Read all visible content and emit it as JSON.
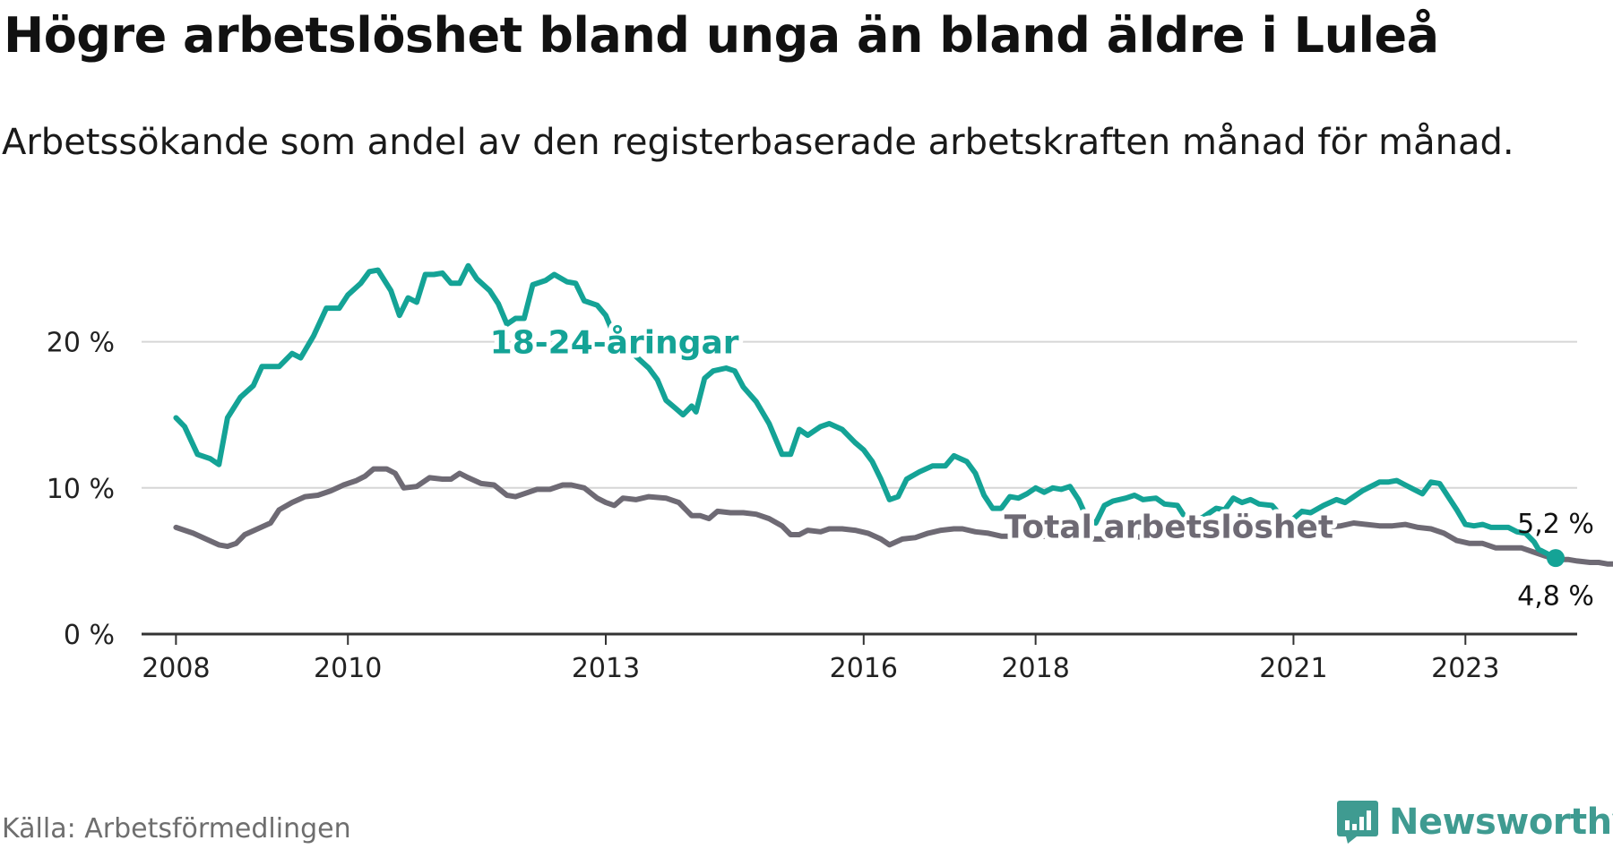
{
  "header": {
    "title": "Högre arbetslöshet bland unga än bland äldre i Luleå",
    "subtitle": "Arbetssökande som andel av den registerbaserade arbetskraften månad för månad."
  },
  "footer": {
    "source": "Källa: Arbetsförmedlingen",
    "brand": "Newsworthy"
  },
  "colors": {
    "young": "#14a396",
    "total": "#6e6a74",
    "grid": "#d6d6d6",
    "axis": "#333333",
    "brand": "#3f9b91"
  },
  "chart_data": {
    "type": "line",
    "title": "Högre arbetslöshet bland unga än bland äldre i Luleå",
    "xlabel": "",
    "ylabel": "",
    "xlim": [
      2007.6,
      2024.3
    ],
    "ylim": [
      0,
      25
    ],
    "y_ticks": [
      {
        "value": 0,
        "label": "0 %"
      },
      {
        "value": 10,
        "label": "10 %"
      },
      {
        "value": 20,
        "label": "20 %"
      }
    ],
    "x_ticks": [
      {
        "value": 2008,
        "label": "2008"
      },
      {
        "value": 2010,
        "label": "2010"
      },
      {
        "value": 2013,
        "label": "2013"
      },
      {
        "value": 2016,
        "label": "2016"
      },
      {
        "value": 2018,
        "label": "2018"
      },
      {
        "value": 2021,
        "label": "2021"
      },
      {
        "value": 2023,
        "label": "2023"
      }
    ],
    "grid": true,
    "series": [
      {
        "name": "18-24-åringar",
        "label": "18-24-åringar",
        "color": "#14a396",
        "label_anchor": {
          "x": 2013.1,
          "y": 19.2
        },
        "end_label": "5,2 %",
        "points": [
          [
            2008.0,
            14.8
          ],
          [
            2008.1,
            14.2
          ],
          [
            2008.25,
            12.3
          ],
          [
            2008.4,
            12.0
          ],
          [
            2008.5,
            11.6
          ],
          [
            2008.6,
            14.8
          ],
          [
            2008.75,
            16.2
          ],
          [
            2008.9,
            17.0
          ],
          [
            2009.0,
            18.3
          ],
          [
            2009.2,
            18.3
          ],
          [
            2009.35,
            19.2
          ],
          [
            2009.45,
            18.9
          ],
          [
            2009.6,
            20.4
          ],
          [
            2009.75,
            22.3
          ],
          [
            2009.9,
            22.3
          ],
          [
            2010.0,
            23.2
          ],
          [
            2010.15,
            24.0
          ],
          [
            2010.25,
            24.8
          ],
          [
            2010.35,
            24.9
          ],
          [
            2010.5,
            23.5
          ],
          [
            2010.6,
            21.8
          ],
          [
            2010.7,
            23.0
          ],
          [
            2010.8,
            22.7
          ],
          [
            2010.9,
            24.6
          ],
          [
            2011.0,
            24.6
          ],
          [
            2011.1,
            24.7
          ],
          [
            2011.2,
            24.0
          ],
          [
            2011.3,
            24.0
          ],
          [
            2011.4,
            25.2
          ],
          [
            2011.5,
            24.3
          ],
          [
            2011.65,
            23.5
          ],
          [
            2011.75,
            22.6
          ],
          [
            2011.85,
            21.2
          ],
          [
            2011.95,
            21.6
          ],
          [
            2012.05,
            21.6
          ],
          [
            2012.15,
            23.9
          ],
          [
            2012.3,
            24.2
          ],
          [
            2012.4,
            24.6
          ],
          [
            2012.55,
            24.1
          ],
          [
            2012.65,
            24.0
          ],
          [
            2012.75,
            22.8
          ],
          [
            2012.9,
            22.5
          ],
          [
            2013.0,
            21.8
          ],
          [
            2013.1,
            20.4
          ],
          [
            2013.2,
            19.8
          ],
          [
            2013.35,
            19.0
          ],
          [
            2013.5,
            18.2
          ],
          [
            2013.6,
            17.4
          ],
          [
            2013.7,
            16.0
          ],
          [
            2013.8,
            15.5
          ],
          [
            2013.9,
            15.0
          ],
          [
            2014.0,
            15.6
          ],
          [
            2014.05,
            15.2
          ],
          [
            2014.15,
            17.5
          ],
          [
            2014.25,
            18.0
          ],
          [
            2014.4,
            18.2
          ],
          [
            2014.5,
            18.0
          ],
          [
            2014.6,
            16.9
          ],
          [
            2014.75,
            15.9
          ],
          [
            2014.9,
            14.4
          ],
          [
            2015.05,
            12.3
          ],
          [
            2015.15,
            12.3
          ],
          [
            2015.25,
            14.0
          ],
          [
            2015.35,
            13.6
          ],
          [
            2015.5,
            14.2
          ],
          [
            2015.6,
            14.4
          ],
          [
            2015.75,
            14.0
          ],
          [
            2015.9,
            13.1
          ],
          [
            2016.0,
            12.6
          ],
          [
            2016.1,
            11.8
          ],
          [
            2016.2,
            10.6
          ],
          [
            2016.3,
            9.2
          ],
          [
            2016.4,
            9.4
          ],
          [
            2016.5,
            10.6
          ],
          [
            2016.65,
            11.1
          ],
          [
            2016.8,
            11.5
          ],
          [
            2016.95,
            11.5
          ],
          [
            2017.05,
            12.2
          ],
          [
            2017.2,
            11.8
          ],
          [
            2017.3,
            11.0
          ],
          [
            2017.4,
            9.5
          ],
          [
            2017.5,
            8.6
          ],
          [
            2017.6,
            8.6
          ],
          [
            2017.7,
            9.4
          ],
          [
            2017.8,
            9.3
          ],
          [
            2017.9,
            9.6
          ],
          [
            2018.0,
            10.0
          ],
          [
            2018.1,
            9.7
          ],
          [
            2018.2,
            10.0
          ],
          [
            2018.3,
            9.9
          ],
          [
            2018.4,
            10.1
          ],
          [
            2018.5,
            9.2
          ],
          [
            2018.6,
            7.9
          ],
          [
            2018.7,
            7.6
          ],
          [
            2018.8,
            8.8
          ],
          [
            2018.9,
            9.1
          ],
          [
            2019.05,
            9.3
          ],
          [
            2019.15,
            9.5
          ],
          [
            2019.25,
            9.2
          ],
          [
            2019.4,
            9.3
          ],
          [
            2019.5,
            8.9
          ],
          [
            2019.65,
            8.8
          ],
          [
            2019.75,
            7.9
          ],
          [
            2019.85,
            7.7
          ],
          [
            2019.95,
            8.0
          ],
          [
            2020.1,
            8.6
          ],
          [
            2020.2,
            8.5
          ],
          [
            2020.3,
            9.3
          ],
          [
            2020.4,
            9.0
          ],
          [
            2020.5,
            9.2
          ],
          [
            2020.6,
            8.9
          ],
          [
            2020.75,
            8.8
          ],
          [
            2020.9,
            7.8
          ],
          [
            2021.0,
            7.9
          ],
          [
            2021.1,
            8.4
          ],
          [
            2021.2,
            8.3
          ],
          [
            2021.35,
            8.8
          ],
          [
            2021.5,
            9.2
          ],
          [
            2021.6,
            9.0
          ],
          [
            2021.7,
            9.4
          ],
          [
            2021.8,
            9.8
          ],
          [
            2021.9,
            10.1
          ],
          [
            2022.0,
            10.4
          ],
          [
            2022.1,
            10.4
          ],
          [
            2022.2,
            10.5
          ],
          [
            2022.3,
            10.2
          ],
          [
            2022.4,
            9.9
          ],
          [
            2022.5,
            9.6
          ],
          [
            2022.6,
            10.4
          ],
          [
            2022.7,
            10.3
          ],
          [
            2022.8,
            9.4
          ],
          [
            2022.9,
            8.5
          ],
          [
            2023.0,
            7.5
          ],
          [
            2023.1,
            7.4
          ],
          [
            2023.2,
            7.5
          ],
          [
            2023.3,
            7.3
          ],
          [
            2023.4,
            7.3
          ],
          [
            2023.5,
            7.3
          ],
          [
            2023.6,
            7.0
          ],
          [
            2023.7,
            6.9
          ],
          [
            2023.8,
            6.3
          ],
          [
            2023.85,
            5.8
          ],
          [
            2023.95,
            5.5
          ],
          [
            2024.05,
            5.2
          ]
        ]
      },
      {
        "name": "Total arbetslöshet",
        "label": "Total arbetslöshet",
        "color": "#6e6a74",
        "label_anchor": {
          "x": 2019.55,
          "y": 6.6
        },
        "end_label": "4,8 %",
        "points": [
          [
            2008.0,
            7.3
          ],
          [
            2008.2,
            6.9
          ],
          [
            2008.35,
            6.5
          ],
          [
            2008.5,
            6.1
          ],
          [
            2008.6,
            6.0
          ],
          [
            2008.7,
            6.2
          ],
          [
            2008.8,
            6.8
          ],
          [
            2008.95,
            7.2
          ],
          [
            2009.1,
            7.6
          ],
          [
            2009.2,
            8.5
          ],
          [
            2009.35,
            9.0
          ],
          [
            2009.5,
            9.4
          ],
          [
            2009.65,
            9.5
          ],
          [
            2009.8,
            9.8
          ],
          [
            2009.95,
            10.2
          ],
          [
            2010.1,
            10.5
          ],
          [
            2010.2,
            10.8
          ],
          [
            2010.3,
            11.3
          ],
          [
            2010.45,
            11.3
          ],
          [
            2010.55,
            11.0
          ],
          [
            2010.65,
            10.0
          ],
          [
            2010.8,
            10.1
          ],
          [
            2010.95,
            10.7
          ],
          [
            2011.1,
            10.6
          ],
          [
            2011.2,
            10.6
          ],
          [
            2011.3,
            11.0
          ],
          [
            2011.4,
            10.7
          ],
          [
            2011.55,
            10.3
          ],
          [
            2011.7,
            10.2
          ],
          [
            2011.85,
            9.5
          ],
          [
            2011.95,
            9.4
          ],
          [
            2012.05,
            9.6
          ],
          [
            2012.2,
            9.9
          ],
          [
            2012.35,
            9.9
          ],
          [
            2012.5,
            10.2
          ],
          [
            2012.6,
            10.2
          ],
          [
            2012.75,
            10.0
          ],
          [
            2012.9,
            9.3
          ],
          [
            2013.0,
            9.0
          ],
          [
            2013.1,
            8.8
          ],
          [
            2013.2,
            9.3
          ],
          [
            2013.35,
            9.2
          ],
          [
            2013.5,
            9.4
          ],
          [
            2013.7,
            9.3
          ],
          [
            2013.85,
            9.0
          ],
          [
            2014.0,
            8.1
          ],
          [
            2014.1,
            8.1
          ],
          [
            2014.2,
            7.9
          ],
          [
            2014.3,
            8.4
          ],
          [
            2014.45,
            8.3
          ],
          [
            2014.6,
            8.3
          ],
          [
            2014.75,
            8.2
          ],
          [
            2014.9,
            7.9
          ],
          [
            2015.05,
            7.4
          ],
          [
            2015.15,
            6.8
          ],
          [
            2015.25,
            6.8
          ],
          [
            2015.35,
            7.1
          ],
          [
            2015.5,
            7.0
          ],
          [
            2015.6,
            7.2
          ],
          [
            2015.75,
            7.2
          ],
          [
            2015.9,
            7.1
          ],
          [
            2016.05,
            6.9
          ],
          [
            2016.2,
            6.5
          ],
          [
            2016.3,
            6.1
          ],
          [
            2016.45,
            6.5
          ],
          [
            2016.6,
            6.6
          ],
          [
            2016.75,
            6.9
          ],
          [
            2016.9,
            7.1
          ],
          [
            2017.05,
            7.2
          ],
          [
            2017.15,
            7.2
          ],
          [
            2017.3,
            7.0
          ],
          [
            2017.45,
            6.9
          ],
          [
            2017.6,
            6.7
          ],
          [
            2017.75,
            6.7
          ],
          [
            2017.9,
            6.7
          ],
          [
            2018.1,
            6.7
          ],
          [
            2018.3,
            6.6
          ],
          [
            2018.5,
            6.6
          ],
          [
            2018.7,
            6.5
          ],
          [
            2018.9,
            6.5
          ],
          [
            2019.1,
            6.6
          ],
          [
            2019.3,
            6.7
          ],
          [
            2019.5,
            6.8
          ],
          [
            2019.7,
            6.8
          ],
          [
            2019.9,
            6.9
          ],
          [
            2020.1,
            7.0
          ],
          [
            2020.3,
            7.1
          ],
          [
            2020.5,
            7.2
          ],
          [
            2020.7,
            7.3
          ],
          [
            2020.85,
            7.4
          ],
          [
            2020.95,
            7.6
          ],
          [
            2021.05,
            7.5
          ],
          [
            2021.15,
            7.4
          ],
          [
            2021.35,
            7.3
          ],
          [
            2021.55,
            7.4
          ],
          [
            2021.7,
            7.6
          ],
          [
            2021.85,
            7.5
          ],
          [
            2022.0,
            7.4
          ],
          [
            2022.15,
            7.4
          ],
          [
            2022.3,
            7.5
          ],
          [
            2022.45,
            7.3
          ],
          [
            2022.6,
            7.2
          ],
          [
            2022.75,
            6.9
          ],
          [
            2022.9,
            6.4
          ],
          [
            2023.05,
            6.2
          ],
          [
            2023.2,
            6.2
          ],
          [
            2023.35,
            5.9
          ],
          [
            2023.5,
            5.9
          ],
          [
            2023.65,
            5.9
          ],
          [
            2023.8,
            5.6
          ],
          [
            2023.95,
            5.3
          ],
          [
            2024.05,
            5.1
          ],
          [
            2024.2,
            5.1
          ],
          [
            2024.3,
            5.0
          ],
          [
            2024.45,
            4.9
          ],
          [
            2024.55,
            4.9
          ],
          [
            2024.65,
            4.8
          ],
          [
            2024.75,
            4.8
          ]
        ]
      }
    ]
  }
}
